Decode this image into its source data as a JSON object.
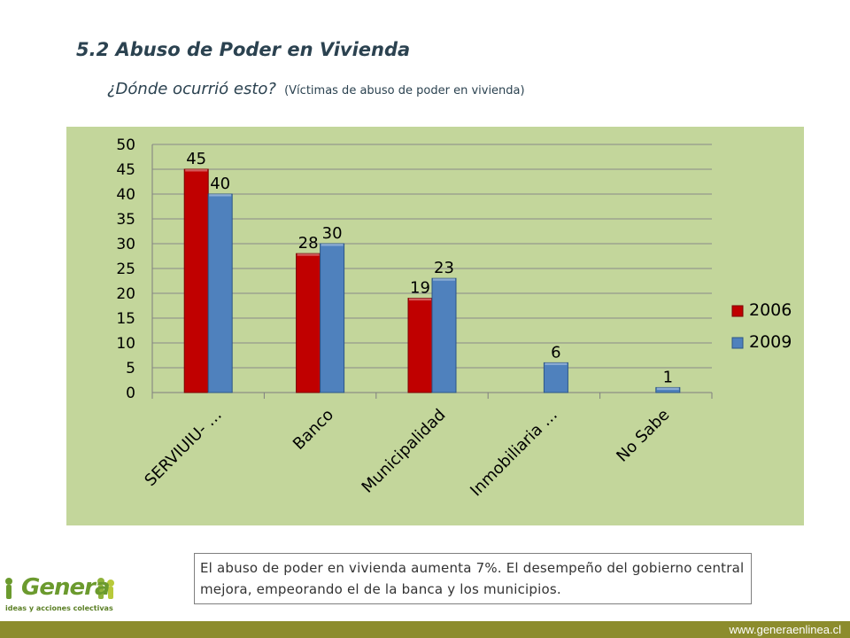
{
  "page": {
    "title": "5.2 Abuso de Poder en Vivienda",
    "subtitle_main": "¿Dónde ocurrió esto?",
    "subtitle_note": "(Víctimas de abuso de poder en vivienda)",
    "note": "El abuso de poder en vivienda aumenta 7%. El desempeño del gobierno central mejora, empeorando el de la banca y los municipios.",
    "logo_text": "Genera",
    "logo_tagline": "ideas y acciones colectivas",
    "footer_url": "www.generaenlinea.cl"
  },
  "colors": {
    "series_2006": "#c00000",
    "series_2009": "#4f81bd",
    "plot_bg": "#c3d69b",
    "footer_bar": "#8c8c2d"
  },
  "chart_data": {
    "type": "bar",
    "categories": [
      "SERVIUIU- …",
      "Banco",
      "Municipalidad",
      "Inmobiliaria …",
      "No Sabe"
    ],
    "series": [
      {
        "name": "2006",
        "values": [
          45,
          28,
          19,
          null,
          null
        ]
      },
      {
        "name": "2009",
        "values": [
          40,
          30,
          23,
          6,
          1
        ]
      }
    ],
    "ylim": [
      0,
      50
    ],
    "yticks": [
      0,
      5,
      10,
      15,
      20,
      25,
      30,
      35,
      40,
      45,
      50
    ],
    "grid": true,
    "legend": "right"
  }
}
